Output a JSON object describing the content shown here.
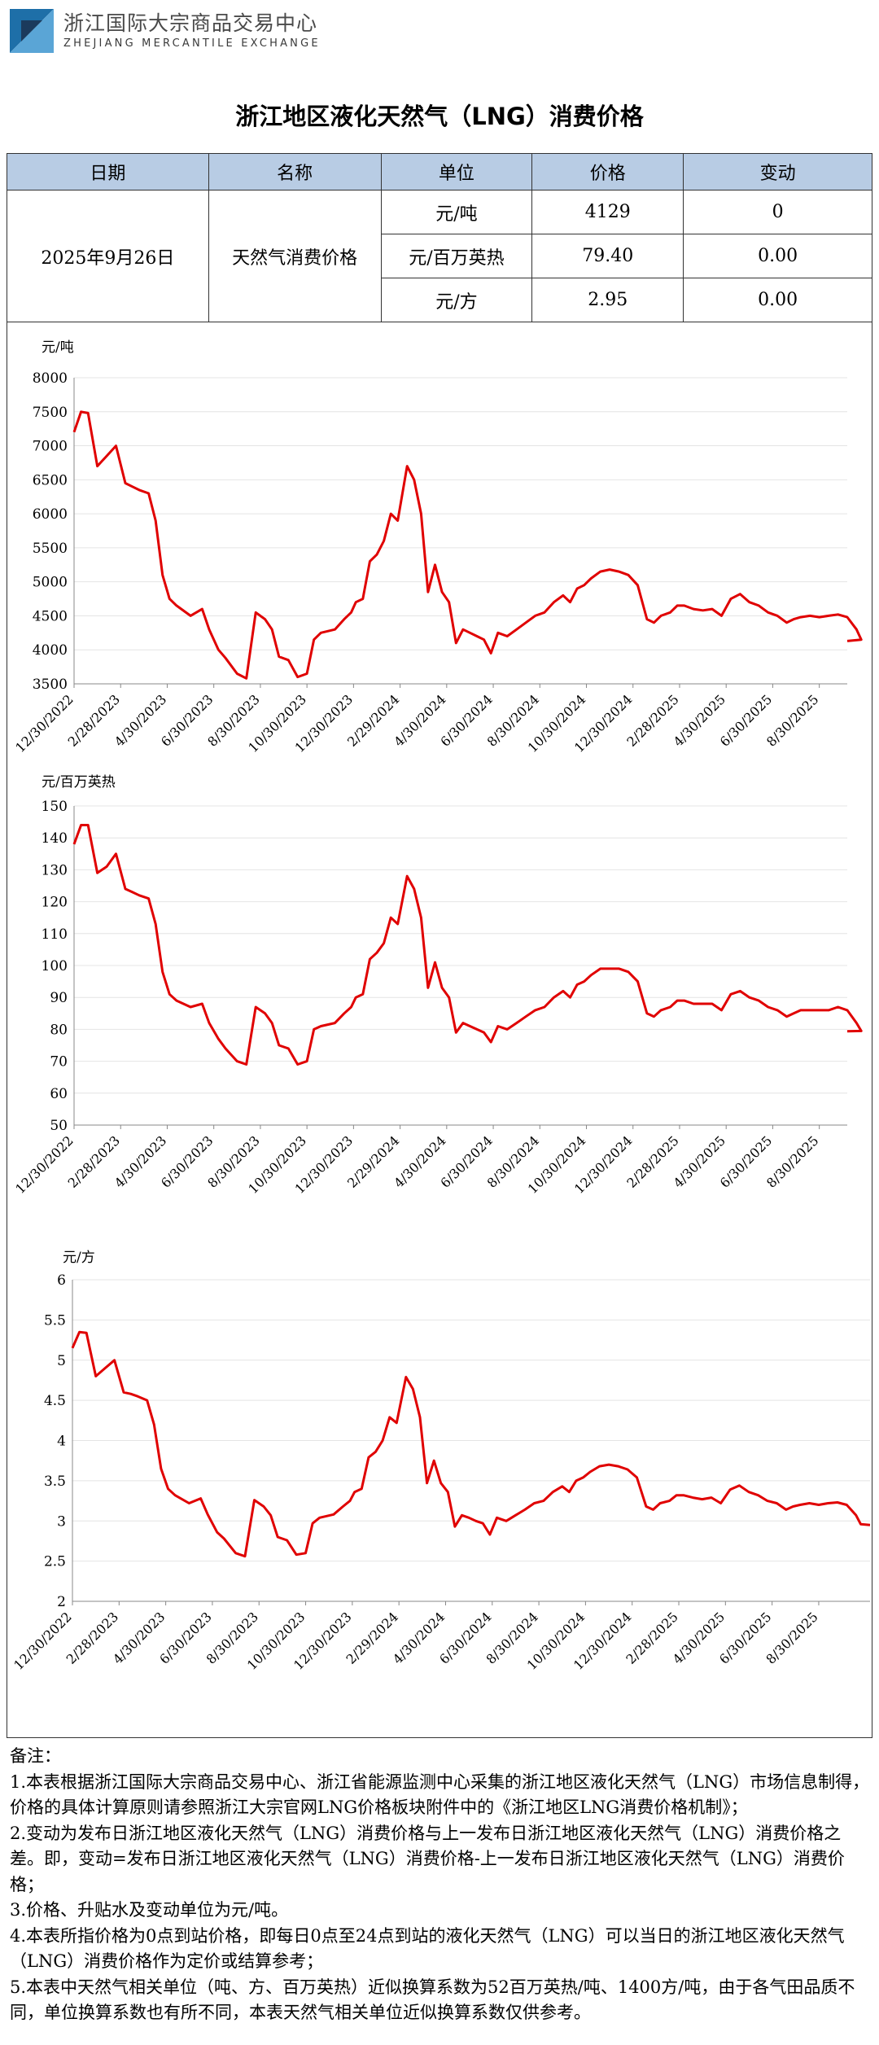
{
  "header": {
    "name_cn": "浙江国际大宗商品交易中心",
    "name_en": "ZHEJIANG MERCANTILE EXCHANGE",
    "logo_colors": [
      "#1e6fa8",
      "#5aa5d6",
      "#1b3a5c"
    ]
  },
  "title": "浙江地区液化天然气（LNG）消费价格",
  "table": {
    "headers": [
      "日期",
      "名称",
      "单位",
      "价格",
      "变动"
    ],
    "date": "2025年9月26日",
    "name": "天然气消费价格",
    "rows": [
      {
        "unit": "元/吨",
        "price": "4129",
        "change": "0"
      },
      {
        "unit": "元/百万英热",
        "price": "79.40",
        "change": "0.00"
      },
      {
        "unit": "元/方",
        "price": "2.95",
        "change": "0.00"
      }
    ]
  },
  "chart_data": [
    {
      "type": "line",
      "ylabel": "元/吨",
      "ylim": [
        3500,
        8000
      ],
      "yticks": [
        3500,
        4000,
        4500,
        5000,
        5500,
        6000,
        6500,
        7000,
        7500,
        8000
      ],
      "xticks": [
        "12/30/2022",
        "2/28/2023",
        "4/30/2023",
        "6/30/2023",
        "8/30/2023",
        "10/30/2023",
        "12/30/2023",
        "2/29/2024",
        "4/30/2024",
        "6/30/2024",
        "8/30/2024",
        "10/30/2024",
        "12/30/2024",
        "2/28/2025",
        "4/30/2025",
        "6/30/2025",
        "8/30/2025"
      ],
      "grid": true,
      "color": "#e00000",
      "x": [
        0,
        0.15,
        0.3,
        0.5,
        0.7,
        0.9,
        1.1,
        1.25,
        1.4,
        1.6,
        1.75,
        1.9,
        2.05,
        2.2,
        2.5,
        2.75,
        2.9,
        3.1,
        3.25,
        3.5,
        3.7,
        3.9,
        4.1,
        4.25,
        4.4,
        4.6,
        4.8,
        5,
        5.15,
        5.3,
        5.6,
        5.8,
        5.95,
        6.05,
        6.2,
        6.35,
        6.5,
        6.65,
        6.8,
        6.95,
        7.15,
        7.3,
        7.45,
        7.6,
        7.75,
        7.9,
        8.05,
        8.2,
        8.35,
        8.5,
        8.65,
        8.8,
        8.95,
        9.1,
        9.3,
        9.5,
        9.7,
        9.9,
        10.1,
        10.3,
        10.5,
        10.65,
        10.8,
        10.95,
        11.1,
        11.3,
        11.5,
        11.7,
        11.9,
        12.1,
        12.3,
        12.45,
        12.6,
        12.8,
        12.95,
        13.1,
        13.3,
        13.5,
        13.7,
        13.9,
        14.1,
        14.3,
        14.5,
        14.7,
        14.9,
        15.1,
        15.3,
        15.45,
        15.6,
        15.8,
        16,
        16.2,
        16.4,
        16.6,
        16.8,
        16.9
      ],
      "y": [
        7200,
        7500,
        7480,
        6700,
        6850,
        7000,
        6450,
        6400,
        6350,
        6300,
        5900,
        5100,
        4750,
        4650,
        4500,
        4600,
        4300,
        4000,
        3880,
        3650,
        3580,
        4550,
        4450,
        4300,
        3900,
        3850,
        3600,
        3650,
        4150,
        4250,
        4300,
        4450,
        4550,
        4700,
        4750,
        5300,
        5400,
        5600,
        6000,
        5900,
        6700,
        6500,
        6000,
        4850,
        5250,
        4850,
        4700,
        4100,
        4300,
        4250,
        4200,
        4150,
        3950,
        4250,
        4200,
        4300,
        4400,
        4500,
        4550,
        4700,
        4800,
        4700,
        4900,
        4950,
        5050,
        5150,
        5180,
        5150,
        5100,
        4950,
        4450,
        4400,
        4500,
        4550,
        4650,
        4650,
        4600,
        4580,
        4600,
        4500,
        4750,
        4820,
        4700,
        4650,
        4550,
        4500,
        4400,
        4450,
        4480,
        4500,
        4480,
        4500,
        4520,
        4480,
        4300,
        4150
      ],
      "end_y": 4129
    },
    {
      "type": "line",
      "ylabel": "元/百万英热",
      "ylim": [
        50,
        150
      ],
      "yticks": [
        50,
        60,
        70,
        80,
        90,
        100,
        110,
        120,
        130,
        140,
        150
      ],
      "xticks": [
        "12/30/2022",
        "2/28/2023",
        "4/30/2023",
        "6/30/2023",
        "8/30/2023",
        "10/30/2023",
        "12/30/2023",
        "2/29/2024",
        "4/30/2024",
        "6/30/2024",
        "8/30/2024",
        "10/30/2024",
        "12/30/2024",
        "2/28/2025",
        "4/30/2025",
        "6/30/2025",
        "8/30/2025"
      ],
      "grid": true,
      "color": "#e00000",
      "x": [
        0,
        0.15,
        0.3,
        0.5,
        0.7,
        0.9,
        1.1,
        1.25,
        1.4,
        1.6,
        1.75,
        1.9,
        2.05,
        2.2,
        2.5,
        2.75,
        2.9,
        3.1,
        3.25,
        3.5,
        3.7,
        3.9,
        4.1,
        4.25,
        4.4,
        4.6,
        4.8,
        5,
        5.15,
        5.3,
        5.6,
        5.8,
        5.95,
        6.05,
        6.2,
        6.35,
        6.5,
        6.65,
        6.8,
        6.95,
        7.15,
        7.3,
        7.45,
        7.6,
        7.75,
        7.9,
        8.05,
        8.2,
        8.35,
        8.5,
        8.65,
        8.8,
        8.95,
        9.1,
        9.3,
        9.5,
        9.7,
        9.9,
        10.1,
        10.3,
        10.5,
        10.65,
        10.8,
        10.95,
        11.1,
        11.3,
        11.5,
        11.7,
        11.9,
        12.1,
        12.3,
        12.45,
        12.6,
        12.8,
        12.95,
        13.1,
        13.3,
        13.5,
        13.7,
        13.9,
        14.1,
        14.3,
        14.5,
        14.7,
        14.9,
        15.1,
        15.3,
        15.45,
        15.6,
        15.8,
        16,
        16.2,
        16.4,
        16.6,
        16.8,
        16.9
      ],
      "y": [
        138,
        144,
        144,
        129,
        131,
        135,
        124,
        123,
        122,
        121,
        113,
        98,
        91,
        89,
        87,
        88,
        82,
        77,
        74,
        70,
        69,
        87,
        85,
        82,
        75,
        74,
        69,
        70,
        80,
        81,
        82,
        85,
        87,
        90,
        91,
        102,
        104,
        107,
        115,
        113,
        128,
        124,
        115,
        93,
        101,
        93,
        90,
        79,
        82,
        81,
        80,
        79,
        76,
        81,
        80,
        82,
        84,
        86,
        87,
        90,
        92,
        90,
        94,
        95,
        97,
        99,
        99,
        99,
        98,
        95,
        85,
        84,
        86,
        87,
        89,
        89,
        88,
        88,
        88,
        86,
        91,
        92,
        90,
        89,
        87,
        86,
        84,
        85,
        86,
        86,
        86,
        86,
        87,
        86,
        82,
        79.5
      ],
      "end_y": 79.4
    },
    {
      "type": "line",
      "ylabel": "元/方",
      "ylim": [
        2,
        6
      ],
      "yticks": [
        2,
        2.5,
        3,
        3.5,
        4,
        4.5,
        5,
        5.5,
        6
      ],
      "xticks": [
        "12/30/2022",
        "2/28/2023",
        "4/30/2023",
        "6/30/2023",
        "8/30/2023",
        "10/30/2023",
        "12/30/2023",
        "2/29/2024",
        "4/30/2024",
        "6/30/2024",
        "8/30/2024",
        "10/30/2024",
        "12/30/2024",
        "2/28/2025",
        "4/30/2025",
        "6/30/2025",
        "8/30/2025"
      ],
      "grid": true,
      "color": "#e00000",
      "x": [
        0,
        0.15,
        0.3,
        0.5,
        0.7,
        0.9,
        1.1,
        1.25,
        1.4,
        1.6,
        1.75,
        1.9,
        2.05,
        2.2,
        2.5,
        2.75,
        2.9,
        3.1,
        3.25,
        3.5,
        3.7,
        3.9,
        4.1,
        4.25,
        4.4,
        4.6,
        4.8,
        5,
        5.15,
        5.3,
        5.6,
        5.8,
        5.95,
        6.05,
        6.2,
        6.35,
        6.5,
        6.65,
        6.8,
        6.95,
        7.15,
        7.3,
        7.45,
        7.6,
        7.75,
        7.9,
        8.05,
        8.2,
        8.35,
        8.5,
        8.65,
        8.8,
        8.95,
        9.1,
        9.3,
        9.5,
        9.7,
        9.9,
        10.1,
        10.3,
        10.5,
        10.65,
        10.8,
        10.95,
        11.1,
        11.3,
        11.5,
        11.7,
        11.9,
        12.1,
        12.3,
        12.45,
        12.6,
        12.8,
        12.95,
        13.1,
        13.3,
        13.5,
        13.7,
        13.9,
        14.1,
        14.3,
        14.5,
        14.7,
        14.9,
        15.1,
        15.3,
        15.45,
        15.6,
        15.8,
        16,
        16.2,
        16.4,
        16.6,
        16.8,
        16.9
      ],
      "y": [
        5.15,
        5.35,
        5.34,
        4.8,
        4.9,
        5.0,
        4.6,
        4.58,
        4.55,
        4.5,
        4.2,
        3.65,
        3.4,
        3.32,
        3.22,
        3.28,
        3.08,
        2.86,
        2.78,
        2.6,
        2.56,
        3.26,
        3.18,
        3.07,
        2.8,
        2.76,
        2.58,
        2.6,
        2.97,
        3.04,
        3.08,
        3.18,
        3.25,
        3.36,
        3.4,
        3.79,
        3.86,
        4.0,
        4.29,
        4.22,
        4.79,
        4.64,
        4.29,
        3.47,
        3.75,
        3.47,
        3.36,
        2.93,
        3.07,
        3.04,
        3.0,
        2.97,
        2.83,
        3.04,
        3.0,
        3.07,
        3.14,
        3.22,
        3.25,
        3.36,
        3.43,
        3.36,
        3.5,
        3.54,
        3.61,
        3.68,
        3.7,
        3.68,
        3.64,
        3.54,
        3.18,
        3.14,
        3.22,
        3.25,
        3.32,
        3.32,
        3.29,
        3.27,
        3.29,
        3.22,
        3.39,
        3.44,
        3.36,
        3.32,
        3.25,
        3.22,
        3.14,
        3.18,
        3.2,
        3.22,
        3.2,
        3.22,
        3.23,
        3.2,
        3.07,
        2.96
      ],
      "end_y": 2.95
    }
  ],
  "notes": [
    "备注：",
    "1.本表根据浙江国际大宗商品交易中心、浙江省能源监测中心采集的浙江地区液化天然气（LNG）市场信息制得，价格的具体计算原则请参照浙江大宗官网LNG价格板块附件中的《浙江地区LNG消费价格机制》；",
    "2.变动为发布日浙江地区液化天然气（LNG）消费价格与上一发布日浙江地区液化天然气（LNG）消费价格之差。即，变动=发布日浙江地区液化天然气（LNG）消费价格-上一发布日浙江地区液化天然气（LNG）消费价格；",
    "3.价格、升贴水及变动单位为元/吨。",
    "4.本表所指价格为0点到站价格，即每日0点至24点到站的液化天然气（LNG）可以当日的浙江地区液化天然气（LNG）消费价格作为定价或结算参考；",
    "5.本表中天然气相关单位（吨、方、百万英热）近似换算系数为52百万英热/吨、1400方/吨，由于各气田品质不同，单位换算系数也有所不同，本表天然气相关单位近似换算系数仅供参考。"
  ]
}
